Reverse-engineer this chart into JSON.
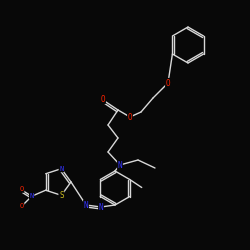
{
  "background": "#080808",
  "bond_color": "#d8d8d8",
  "atom_colors": {
    "O": "#ff2200",
    "N": "#3333ff",
    "S": "#c8b820",
    "C": "#d8d8d8"
  },
  "lw": 1.0
}
